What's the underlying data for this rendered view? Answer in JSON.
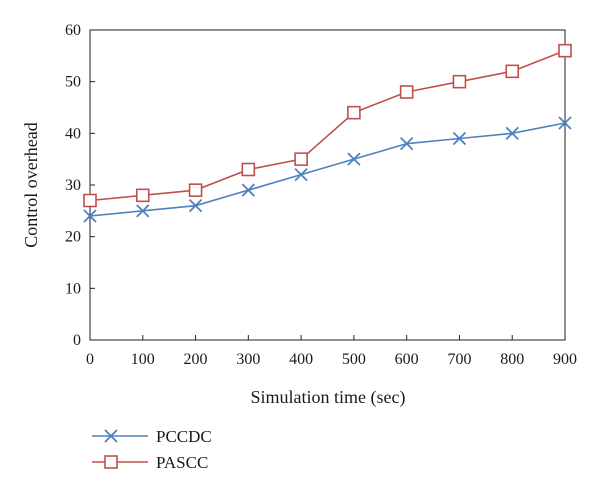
{
  "chart_data": {
    "type": "line",
    "title": "",
    "xlabel": "Simulation time (sec)",
    "ylabel": "Control overhead",
    "x": [
      0,
      100,
      200,
      300,
      400,
      500,
      600,
      700,
      800,
      900
    ],
    "xlim": [
      0,
      900
    ],
    "ylim": [
      0,
      60
    ],
    "xticks": [
      "0",
      "100",
      "200",
      "300",
      "400",
      "500",
      "600",
      "700",
      "800",
      "900"
    ],
    "yticks": [
      "0",
      "10",
      "20",
      "30",
      "40",
      "50",
      "60"
    ],
    "grid": false,
    "legend_position": "bottom-left",
    "series": [
      {
        "name": "PCCDC",
        "values": [
          24,
          25,
          26,
          29,
          32,
          35,
          38,
          39,
          40,
          42
        ],
        "color": "#4f81bd",
        "marker": "x"
      },
      {
        "name": "PASCC",
        "values": [
          27,
          28,
          29,
          33,
          35,
          44,
          48,
          50,
          52,
          56
        ],
        "color": "#c0504d",
        "marker": "square"
      }
    ]
  }
}
